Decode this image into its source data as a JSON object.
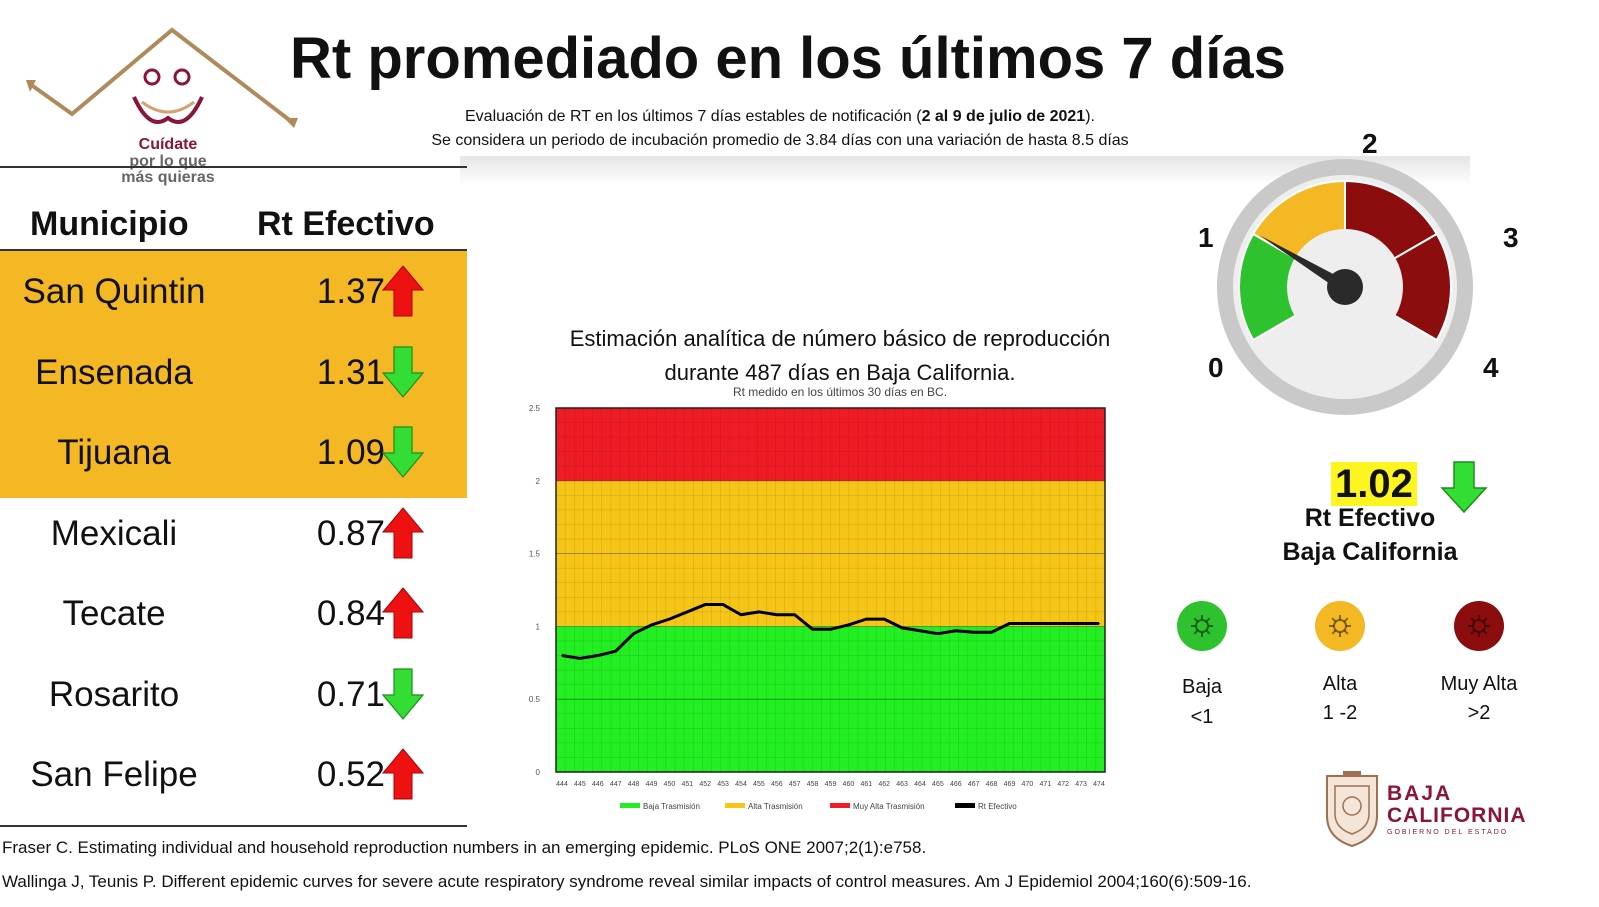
{
  "title": "Rt promediado en los últimos 7 días",
  "subtitle_pre": "Evaluación de RT en los últimos 7 días estables de notificación (",
  "subtitle_bold": "2 al 9 de julio de 2021",
  "subtitle_post": ").",
  "subtitle2": "Se considera un periodo de incubación promedio de 3.84 días con una variación de hasta 8.5 días",
  "logo": {
    "line1": "Cuídate",
    "line2": "por lo que",
    "line3": "más quieras"
  },
  "table": {
    "header_municipio": "Municipio",
    "header_rt": "Rt Efectivo",
    "rows": [
      {
        "name": "San Quintin",
        "value": "1.37",
        "trend": "up"
      },
      {
        "name": "Ensenada",
        "value": "1.31",
        "trend": "down"
      },
      {
        "name": "Tijuana",
        "value": "1.09",
        "trend": "down"
      },
      {
        "name": "Mexicali",
        "value": "0.87",
        "trend": "up"
      },
      {
        "name": "Tecate",
        "value": "0.84",
        "trend": "up"
      },
      {
        "name": "Rosarito",
        "value": "0.71",
        "trend": "down"
      },
      {
        "name": "San Felipe",
        "value": "0.52",
        "trend": "up"
      }
    ]
  },
  "chart_data": {
    "type": "line",
    "title_line1": "Estimación analítica de número básico de reproducción",
    "title_line2": "durante 487 días en Baja California.",
    "subtitle": "Rt medido en los últimos 30 días en BC.",
    "x": [
      444,
      445,
      446,
      447,
      448,
      449,
      450,
      451,
      452,
      453,
      454,
      455,
      456,
      457,
      458,
      459,
      460,
      461,
      462,
      463,
      464,
      465,
      466,
      467,
      468,
      469,
      470,
      471,
      472,
      473,
      474
    ],
    "series": [
      {
        "name": "Rt Efectivo",
        "color": "#000000",
        "values": [
          0.8,
          0.78,
          0.8,
          0.83,
          0.95,
          1.01,
          1.05,
          1.1,
          1.15,
          1.15,
          1.08,
          1.1,
          1.08,
          1.08,
          0.98,
          0.98,
          1.01,
          1.05,
          1.05,
          0.99,
          0.97,
          0.95,
          0.97,
          0.96,
          0.96,
          1.02,
          1.02,
          1.02,
          1.02,
          1.02,
          1.02
        ]
      }
    ],
    "bands": [
      {
        "name": "Baja Trasmisión",
        "from": 0,
        "to": 1,
        "color": "#22ee22"
      },
      {
        "name": "Alta Trasmisión",
        "from": 1,
        "to": 2,
        "color": "#f5c518"
      },
      {
        "name": "Muy Alta Trasmisión",
        "from": 2,
        "to": 2.5,
        "color": "#ee1c25"
      }
    ],
    "legend": [
      "Baja Trasmisión",
      "Alta Trasmisión",
      "Muy Alta Trasmisión",
      "Rt Efectivo"
    ],
    "ylim": [
      0,
      2.5
    ],
    "yticks": [
      "0",
      "0.5",
      "1",
      "1.5",
      "2",
      "2.5"
    ],
    "grid": true,
    "legend_position": "bottom"
  },
  "gauge": {
    "labels": [
      "0",
      "1",
      "2",
      "3",
      "4"
    ],
    "value": 1.02,
    "max": 4,
    "colors": {
      "low": "#2ec32e",
      "mid": "#f4b824",
      "high": "#8b0d0d"
    }
  },
  "summary": {
    "value": "1.02",
    "trend": "down",
    "label1": "Rt Efectivo",
    "label2": "Baja California"
  },
  "levels": [
    {
      "name": "Baja",
      "range": "<1",
      "color": "#2ec32e"
    },
    {
      "name": "Alta",
      "range": "1 -2",
      "color": "#f4b824"
    },
    {
      "name": "Muy Alta",
      "range": ">2",
      "color": "#8b0d0d"
    }
  ],
  "bc_logo": {
    "line1": "BAJA",
    "line2": "CALIFORNIA",
    "line3": "GOBIERNO DEL ESTADO"
  },
  "references": [
    "Fraser C. Estimating individual and household reproduction numbers in an emerging epidemic. PLoS ONE 2007;2(1):e758.",
    "Wallinga J, Teunis P. Different epidemic curves for severe acute respiratory syndrome reveal similar impacts of control measures. Am J Epidemiol 2004;160(6):509-16."
  ]
}
